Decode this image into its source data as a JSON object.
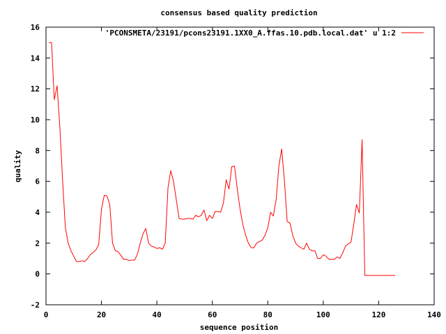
{
  "chart_data": {
    "type": "line",
    "title": "consensus based quality prediction",
    "xlabel": "sequence position",
    "ylabel": "quality",
    "xlim": [
      0,
      140
    ],
    "ylim": [
      -2,
      16
    ],
    "x_ticks": [
      0,
      20,
      40,
      60,
      80,
      100,
      120,
      140
    ],
    "y_ticks": [
      -2,
      0,
      2,
      4,
      6,
      8,
      10,
      12,
      14,
      16
    ],
    "grid": false,
    "legend_position": "top-right",
    "series": [
      {
        "name": "'PCONSMETA/23191/pcons23191.1XX0_A.ffas.10.pdb.local.dat' u 1:2",
        "color": "#ff0000",
        "x": [
          1,
          2,
          3,
          4,
          5,
          6,
          7,
          8,
          9,
          10,
          11,
          12,
          13,
          14,
          15,
          16,
          17,
          18,
          19,
          20,
          21,
          22,
          23,
          24,
          25,
          26,
          27,
          28,
          29,
          30,
          31,
          32,
          33,
          34,
          35,
          36,
          37,
          38,
          39,
          40,
          41,
          42,
          43,
          44,
          45,
          46,
          47,
          48,
          49,
          50,
          51,
          52,
          53,
          54,
          55,
          56,
          57,
          58,
          59,
          60,
          61,
          62,
          63,
          64,
          65,
          66,
          67,
          68,
          69,
          70,
          71,
          72,
          73,
          74,
          75,
          76,
          77,
          78,
          79,
          80,
          81,
          82,
          83,
          84,
          85,
          86,
          87,
          88,
          89,
          90,
          91,
          92,
          93,
          94,
          95,
          96,
          97,
          98,
          99,
          100,
          101,
          102,
          103,
          104,
          105,
          106,
          107,
          108,
          109,
          110,
          111,
          112,
          113,
          114,
          115,
          116,
          117,
          118,
          119,
          120,
          121,
          122,
          123,
          124,
          125,
          126
        ],
        "values": [
          15.0,
          15.0,
          11.3,
          12.2,
          9.5,
          6.0,
          3.0,
          2.0,
          1.5,
          1.15,
          0.8,
          0.8,
          0.85,
          0.8,
          1.0,
          1.25,
          1.4,
          1.55,
          1.9,
          4.2,
          5.1,
          5.05,
          4.5,
          2.0,
          1.5,
          1.45,
          1.2,
          0.95,
          0.95,
          0.85,
          0.9,
          0.9,
          1.3,
          2.0,
          2.6,
          2.95,
          2.0,
          1.8,
          1.75,
          1.65,
          1.7,
          1.6,
          2.0,
          5.6,
          6.7,
          6.0,
          4.8,
          3.6,
          3.55,
          3.55,
          3.6,
          3.6,
          3.55,
          3.8,
          3.7,
          3.8,
          4.15,
          3.45,
          3.8,
          3.6,
          4.05,
          4.05,
          4.0,
          4.6,
          6.1,
          5.5,
          6.95,
          7.0,
          5.5,
          4.2,
          3.2,
          2.5,
          2.0,
          1.7,
          1.7,
          2.0,
          2.1,
          2.2,
          2.5,
          3.0,
          4.0,
          3.75,
          4.8,
          7.0,
          8.1,
          6.0,
          3.4,
          3.3,
          2.5,
          2.0,
          1.8,
          1.7,
          1.6,
          2.0,
          1.6,
          1.5,
          1.5,
          1.0,
          1.0,
          1.25,
          1.15,
          0.95,
          0.95,
          0.95,
          1.1,
          1.0,
          1.35,
          1.8,
          1.95,
          2.05,
          3.2,
          4.5,
          3.95,
          8.7,
          -0.1,
          -0.1,
          -0.1,
          -0.1,
          -0.1,
          -0.1,
          -0.1,
          -0.1,
          -0.1,
          -0.1,
          -0.1,
          -0.1
        ]
      }
    ]
  }
}
